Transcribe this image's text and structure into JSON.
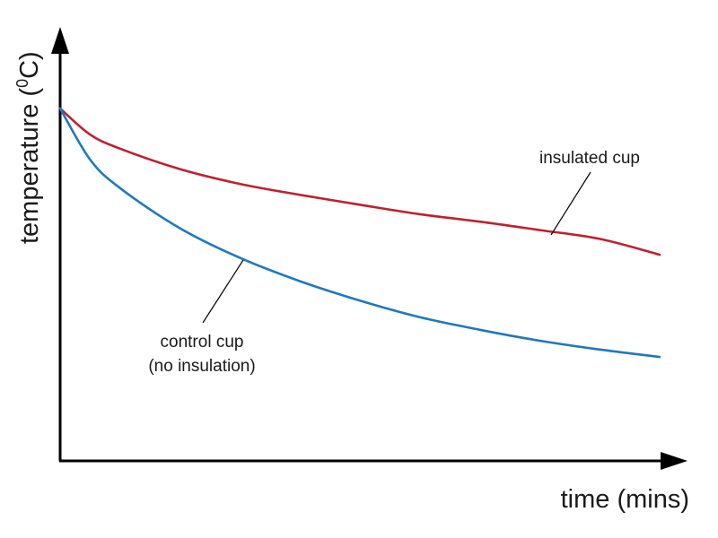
{
  "chart_data": {
    "type": "line",
    "xlabel": "time (mins)",
    "ylabel": {
      "prefix": "temperature (",
      "superscript": "0",
      "suffix": "C)"
    },
    "xlim": [
      0,
      100
    ],
    "ylim": [
      0,
      100
    ],
    "grid": false,
    "legend": "none",
    "series": [
      {
        "color": "#c0202f",
        "x": [
          0,
          5,
          10,
          20,
          30,
          40,
          50,
          60,
          70,
          80,
          90,
          100
        ],
        "y": [
          100,
          92.6,
          88.6,
          82.8,
          78.6,
          75.5,
          72.7,
          70.0,
          67.9,
          65.5,
          63.0,
          58.5
        ]
      },
      {
        "color": "#1f79be",
        "x": [
          0,
          5,
          10,
          20,
          30,
          40,
          50,
          60,
          70,
          80,
          90,
          100
        ],
        "y": [
          100,
          85.5,
          77.4,
          66.0,
          57.6,
          51.0,
          45.5,
          40.8,
          37.2,
          34.1,
          31.6,
          29.5
        ]
      }
    ],
    "annotations": [
      {
        "lines": [
          "insulated cup"
        ],
        "series_index": 0
      },
      {
        "lines": [
          "control cup",
          "(no insulation)"
        ],
        "series_index": 1
      }
    ]
  }
}
